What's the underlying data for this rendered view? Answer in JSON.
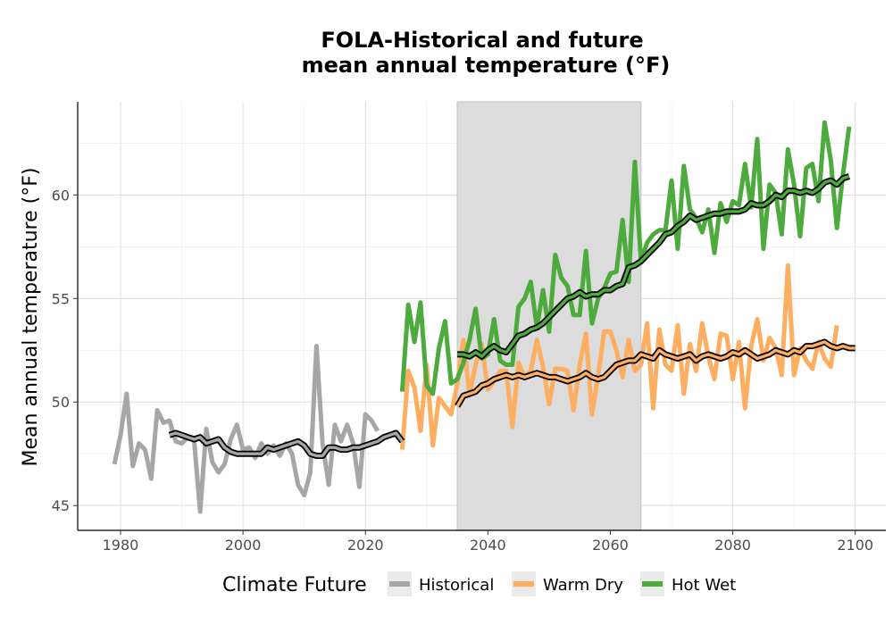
{
  "chart_data": {
    "type": "line",
    "title_line1": "FOLA-Historical and future",
    "title_line2": "mean annual temperature (°F)",
    "xlabel": "",
    "ylabel": "Mean annual temperature (°F)",
    "xlim": [
      1973,
      2105
    ],
    "ylim": [
      43.8,
      64.5
    ],
    "x_ticks": [
      "1980",
      "2000",
      "2020",
      "2040",
      "2060",
      "2080",
      "2100"
    ],
    "y_ticks": [
      "45",
      "50",
      "55",
      "60"
    ],
    "grid": true,
    "shaded_period": [
      2035,
      2065
    ],
    "legend": {
      "title": "Climate Future",
      "position": "bottom",
      "entries": [
        {
          "label": "Historical",
          "color": "#a6a6a6"
        },
        {
          "label": "Warm Dry",
          "color": "#fdae61"
        },
        {
          "label": "Hot Wet",
          "color": "#4daa3d"
        }
      ]
    },
    "series": [
      {
        "name": "Historical",
        "color": "#a6a6a6",
        "start_year": 1979,
        "values": [
          47.0,
          48.4,
          50.4,
          46.9,
          48.0,
          47.7,
          46.3,
          49.6,
          49.0,
          49.1,
          48.1,
          48.0,
          48.3,
          48.2,
          44.7,
          48.7,
          47.1,
          46.6,
          47.0,
          48.2,
          48.9,
          47.7,
          47.8,
          47.3,
          48.0,
          47.5,
          47.9,
          47.4,
          48.0,
          47.5,
          46.0,
          45.5,
          46.6,
          52.7,
          48.0,
          46.0,
          48.9,
          48.1,
          48.9,
          48.0,
          45.9,
          49.4,
          49.1,
          48.6
        ]
      },
      {
        "name": "Historical smoothed",
        "color": "#a6a6a6",
        "start_year": 1988,
        "values": [
          48.4,
          48.5,
          48.4,
          48.3,
          48.2,
          48.3,
          48.0,
          48.1,
          48.2,
          47.8,
          47.6,
          47.5,
          47.5,
          47.5,
          47.5,
          47.5,
          47.8,
          47.7,
          47.8,
          47.9,
          48.0,
          48.1,
          47.9,
          47.5,
          47.4,
          47.4,
          47.8,
          47.8,
          47.7,
          47.7,
          47.8,
          47.8,
          47.9,
          48.0,
          48.1,
          48.3,
          48.4,
          48.5,
          48.1
        ]
      },
      {
        "name": "Warm Dry",
        "color": "#fdae61",
        "start_year": 2026,
        "values": [
          47.7,
          51.5,
          50.7,
          48.6,
          51.8,
          47.9,
          50.2,
          49.8,
          49.4,
          50.9,
          53.0,
          50.4,
          51.8,
          52.8,
          50.6,
          51.0,
          51.5,
          51.5,
          48.8,
          51.9,
          51.2,
          51.5,
          53.0,
          51.7,
          49.9,
          51.6,
          51.6,
          51.5,
          49.6,
          51.8,
          53.3,
          49.4,
          51.3,
          53.4,
          53.4,
          52.5,
          51.2,
          53.0,
          51.5,
          51.8,
          53.8,
          49.7,
          53.5,
          51.8,
          51.5,
          53.7,
          50.4,
          52.8,
          51.5,
          53.8,
          52.2,
          51.1,
          53.3,
          53.2,
          51.1,
          52.9,
          49.7,
          52.7,
          54.0,
          52.0,
          53.1,
          52.6,
          51.3,
          56.6,
          51.3,
          52.6,
          52.0,
          51.6,
          52.9,
          52.1,
          51.7,
          53.7
        ]
      },
      {
        "name": "Warm Dry smoothed",
        "color": "#fdae61",
        "start_year": 2035,
        "values": [
          49.8,
          50.3,
          50.4,
          50.5,
          50.8,
          50.9,
          51.1,
          51.2,
          51.3,
          51.2,
          51.3,
          51.2,
          51.3,
          51.4,
          51.3,
          51.2,
          51.2,
          51.1,
          51.0,
          51.1,
          51.2,
          51.4,
          51.2,
          51.1,
          51.2,
          51.5,
          51.8,
          51.9,
          52.0,
          52.0,
          52.3,
          52.2,
          52.1,
          52.5,
          52.3,
          52.2,
          52.1,
          52.2,
          52.3,
          52.0,
          52.2,
          52.3,
          52.2,
          52.1,
          52.2,
          52.4,
          52.3,
          52.5,
          52.3,
          52.1,
          52.2,
          52.3,
          52.5,
          52.4,
          52.3,
          52.5,
          52.4,
          52.7,
          52.7,
          52.8,
          52.9,
          52.7,
          52.6,
          52.7,
          52.6,
          52.6
        ]
      },
      {
        "name": "Hot Wet",
        "color": "#4daa3d",
        "start_year": 2026,
        "values": [
          50.5,
          54.7,
          52.9,
          54.8,
          50.8,
          50.4,
          52.6,
          53.9,
          50.9,
          51.1,
          51.9,
          53.0,
          54.5,
          52.1,
          52.3,
          54.0,
          52.0,
          51.8,
          51.8,
          54.6,
          55.0,
          55.8,
          53.6,
          55.4,
          53.4,
          57.1,
          56.0,
          55.6,
          54.2,
          54.2,
          57.3,
          53.8,
          55.0,
          55.5,
          56.2,
          56.3,
          58.8,
          55.8,
          61.6,
          56.8,
          57.7,
          58.1,
          58.3,
          58.3,
          60.7,
          57.4,
          61.4,
          59.3,
          58.9,
          58.2,
          59.3,
          57.2,
          59.6,
          58.7,
          59.7,
          59.5,
          61.5,
          59.4,
          62.7,
          57.4,
          60.5,
          60.1,
          58.1,
          62.2,
          60.5,
          58.0,
          61.3,
          61.5,
          59.7,
          63.5,
          61.7,
          58.4,
          61.0,
          63.3
        ]
      },
      {
        "name": "Hot Wet smoothed",
        "color": "#4daa3d",
        "start_year": 2035,
        "values": [
          52.3,
          52.3,
          52.2,
          52.4,
          52.2,
          52.5,
          52.7,
          52.5,
          52.4,
          52.8,
          53.2,
          53.3,
          53.5,
          53.6,
          53.8,
          54.1,
          54.4,
          54.7,
          55.0,
          55.1,
          55.3,
          55.1,
          55.2,
          55.2,
          55.4,
          55.4,
          55.6,
          55.7,
          56.5,
          56.6,
          56.8,
          57.1,
          57.4,
          57.7,
          58.1,
          58.2,
          58.5,
          58.7,
          59.0,
          58.8,
          58.9,
          59.0,
          59.1,
          59.1,
          59.2,
          59.2,
          59.2,
          59.3,
          59.6,
          59.5,
          59.5,
          59.7,
          60.0,
          59.9,
          60.2,
          60.2,
          60.1,
          60.2,
          60.1,
          60.3,
          60.6,
          60.7,
          60.5,
          60.8,
          60.9
        ]
      }
    ]
  }
}
